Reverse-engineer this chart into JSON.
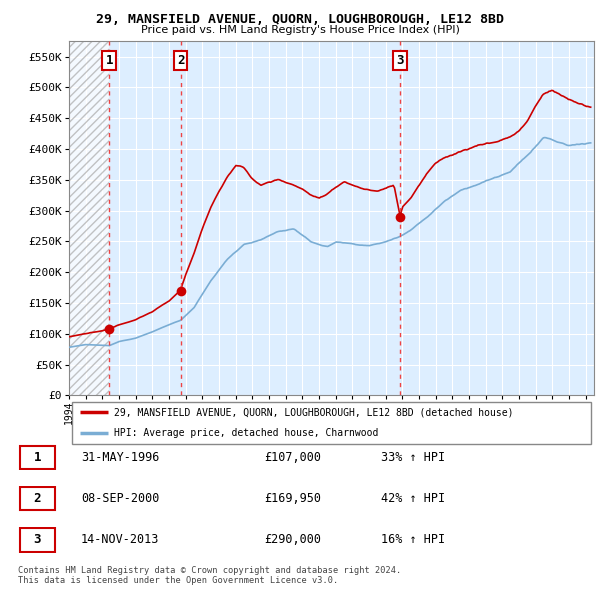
{
  "title": "29, MANSFIELD AVENUE, QUORN, LOUGHBOROUGH, LE12 8BD",
  "subtitle": "Price paid vs. HM Land Registry's House Price Index (HPI)",
  "xlim_start": 1994.0,
  "xlim_end": 2025.5,
  "ylim": [
    0,
    575000
  ],
  "yticks": [
    0,
    50000,
    100000,
    150000,
    200000,
    250000,
    300000,
    350000,
    400000,
    450000,
    500000,
    550000
  ],
  "sales": [
    {
      "date_num": 1996.42,
      "price": 107000,
      "label": "1"
    },
    {
      "date_num": 2000.69,
      "price": 169950,
      "label": "2"
    },
    {
      "date_num": 2013.87,
      "price": 290000,
      "label": "3"
    }
  ],
  "vline_dates": [
    1996.42,
    2000.69,
    2013.87
  ],
  "legend_line1": "29, MANSFIELD AVENUE, QUORN, LOUGHBOROUGH, LE12 8BD (detached house)",
  "legend_line2": "HPI: Average price, detached house, Charnwood",
  "table_rows": [
    {
      "num": "1",
      "date": "31-MAY-1996",
      "price": "£107,000",
      "pct": "33% ↑ HPI"
    },
    {
      "num": "2",
      "date": "08-SEP-2000",
      "price": "£169,950",
      "pct": "42% ↑ HPI"
    },
    {
      "num": "3",
      "date": "14-NOV-2013",
      "price": "£290,000",
      "pct": "16% ↑ HPI"
    }
  ],
  "footnote": "Contains HM Land Registry data © Crown copyright and database right 2024.\nThis data is licensed under the Open Government Licence v3.0.",
  "red_line_color": "#cc0000",
  "blue_line_color": "#7aadd4",
  "chart_bg": "#ddeeff",
  "hatch_color": "#bbcccc",
  "grid_color": "#ffffff",
  "vline_color": "#ee4444",
  "label_box_color": "#cc0000"
}
